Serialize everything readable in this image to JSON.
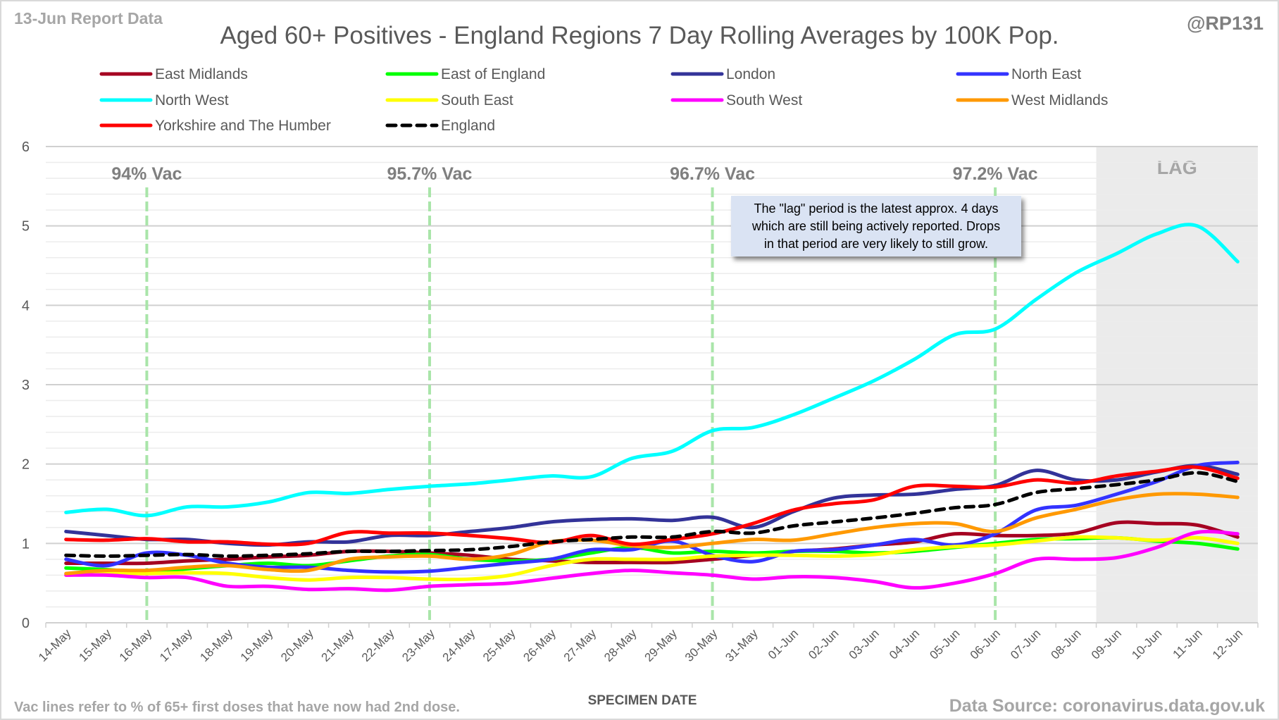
{
  "header": {
    "report_date": "13-Jun Report Data",
    "handle": "@RP131"
  },
  "footer": {
    "note": "Vac lines refer to % of 65+ first doses that have now had 2nd dose.",
    "source": "Data Source: coronavirus.data.gov.uk"
  },
  "annotation": {
    "lines": [
      "The \"lag\" period is the latest approx. 4 days",
      "which are still being actively reported.  Drops",
      "in that period are very likely to still grow."
    ]
  },
  "chart_data": {
    "type": "line",
    "title": "Aged 60+ Positives - England Regions 7 Day Rolling Averages by 100K Pop.",
    "xlabel": "SPECIMEN DATE",
    "ylabel": "",
    "ylim": [
      0,
      6
    ],
    "yticks": [
      0,
      1,
      2,
      3,
      4,
      5,
      6
    ],
    "minor_grid_step": 0.2,
    "grid": true,
    "legend_position": "top",
    "categories": [
      "14-May",
      "15-May",
      "16-May",
      "17-May",
      "18-May",
      "19-May",
      "20-May",
      "21-May",
      "22-May",
      "23-May",
      "24-May",
      "25-May",
      "26-May",
      "27-May",
      "28-May",
      "29-May",
      "30-May",
      "31-May",
      "01-Jun",
      "02-Jun",
      "03-Jun",
      "04-Jun",
      "05-Jun",
      "06-Jun",
      "07-Jun",
      "08-Jun",
      "09-Jun",
      "10-Jun",
      "11-Jun",
      "12-Jun"
    ],
    "series": [
      {
        "name": "East Midlands",
        "color": "#a50021",
        "dashed": false,
        "values": [
          0.75,
          0.75,
          0.75,
          0.78,
          0.8,
          0.83,
          0.85,
          0.9,
          0.9,
          0.88,
          0.85,
          0.8,
          0.78,
          0.76,
          0.76,
          0.76,
          0.8,
          0.85,
          0.9,
          0.93,
          0.98,
          1.02,
          1.12,
          1.1,
          1.1,
          1.13,
          1.26,
          1.25,
          1.23,
          1.08
        ]
      },
      {
        "name": "East of England",
        "color": "#00ff00",
        "dashed": false,
        "values": [
          0.69,
          0.67,
          0.64,
          0.68,
          0.72,
          0.75,
          0.72,
          0.78,
          0.84,
          0.86,
          0.8,
          0.78,
          0.8,
          0.88,
          0.95,
          0.88,
          0.9,
          0.88,
          0.9,
          0.9,
          0.88,
          0.9,
          0.95,
          1.0,
          1.05,
          1.06,
          1.07,
          1.03,
          1.0,
          0.93
        ]
      },
      {
        "name": "London",
        "color": "#333399",
        "dashed": false,
        "values": [
          1.15,
          1.1,
          1.05,
          1.05,
          1.0,
          0.98,
          1.02,
          1.02,
          1.1,
          1.1,
          1.15,
          1.2,
          1.27,
          1.3,
          1.31,
          1.29,
          1.33,
          1.2,
          1.4,
          1.57,
          1.61,
          1.62,
          1.68,
          1.73,
          1.92,
          1.8,
          1.8,
          1.9,
          1.98,
          1.87
        ]
      },
      {
        "name": "North East",
        "color": "#3333ff",
        "dashed": false,
        "values": [
          0.8,
          0.72,
          0.88,
          0.85,
          0.75,
          0.7,
          0.7,
          0.66,
          0.64,
          0.65,
          0.7,
          0.75,
          0.8,
          0.92,
          0.92,
          1.03,
          0.85,
          0.77,
          0.9,
          0.92,
          0.98,
          1.05,
          0.98,
          1.12,
          1.42,
          1.48,
          1.62,
          1.78,
          1.98,
          2.02
        ]
      },
      {
        "name": "North West",
        "color": "#00ffff",
        "dashed": false,
        "values": [
          1.39,
          1.43,
          1.35,
          1.46,
          1.46,
          1.52,
          1.64,
          1.63,
          1.68,
          1.72,
          1.75,
          1.8,
          1.85,
          1.84,
          2.07,
          2.16,
          2.42,
          2.46,
          2.62,
          2.83,
          3.05,
          3.32,
          3.63,
          3.7,
          4.07,
          4.41,
          4.65,
          4.9,
          5.0,
          4.55
        ]
      },
      {
        "name": "South East",
        "color": "#ffff00",
        "dashed": false,
        "values": [
          0.6,
          0.62,
          0.62,
          0.63,
          0.62,
          0.57,
          0.54,
          0.57,
          0.57,
          0.55,
          0.55,
          0.6,
          0.72,
          0.8,
          0.8,
          0.8,
          0.84,
          0.85,
          0.85,
          0.84,
          0.86,
          0.92,
          0.96,
          0.98,
          1.03,
          1.08,
          1.07,
          1.04,
          1.07,
          1.0
        ]
      },
      {
        "name": "South West",
        "color": "#ff00ff",
        "dashed": false,
        "values": [
          0.6,
          0.6,
          0.57,
          0.57,
          0.46,
          0.46,
          0.42,
          0.43,
          0.41,
          0.46,
          0.48,
          0.5,
          0.56,
          0.62,
          0.66,
          0.63,
          0.6,
          0.55,
          0.58,
          0.57,
          0.52,
          0.44,
          0.5,
          0.62,
          0.8,
          0.8,
          0.82,
          0.95,
          1.14,
          1.12
        ]
      },
      {
        "name": "West Midlands",
        "color": "#ff9900",
        "dashed": false,
        "values": [
          0.62,
          0.66,
          0.66,
          0.7,
          0.72,
          0.67,
          0.66,
          0.8,
          0.83,
          0.84,
          0.8,
          0.86,
          1.02,
          1.04,
          0.97,
          0.95,
          1.0,
          1.05,
          1.04,
          1.12,
          1.2,
          1.25,
          1.25,
          1.15,
          1.32,
          1.43,
          1.55,
          1.62,
          1.62,
          1.58
        ]
      },
      {
        "name": "Yorkshire and The Humber",
        "color": "#ff0000",
        "dashed": false,
        "values": [
          1.05,
          1.04,
          1.06,
          1.02,
          1.02,
          0.99,
          1.0,
          1.14,
          1.13,
          1.13,
          1.1,
          1.06,
          1.01,
          1.1,
          0.99,
          1.05,
          1.12,
          1.25,
          1.42,
          1.5,
          1.55,
          1.72,
          1.72,
          1.71,
          1.8,
          1.76,
          1.85,
          1.91,
          1.96,
          1.82
        ]
      },
      {
        "name": "England",
        "color": "#000000",
        "dashed": true,
        "values": [
          0.85,
          0.84,
          0.85,
          0.86,
          0.84,
          0.85,
          0.87,
          0.9,
          0.9,
          0.91,
          0.92,
          0.96,
          1.02,
          1.05,
          1.08,
          1.08,
          1.15,
          1.13,
          1.22,
          1.27,
          1.32,
          1.38,
          1.45,
          1.49,
          1.64,
          1.69,
          1.74,
          1.8,
          1.89,
          1.78
        ]
      }
    ],
    "vac_lines": [
      {
        "date": "16-May",
        "label": "94% Vac"
      },
      {
        "date": "23-May",
        "label": "95.7% Vac"
      },
      {
        "date": "30-May",
        "label": "96.7% Vac"
      },
      {
        "date": "06-Jun",
        "label": "97.2% Vac"
      }
    ],
    "vac_line_color": "#a9e5a9",
    "lag": {
      "start": "09-Jun",
      "end": "12-Jun",
      "label": "LAG",
      "days": 4,
      "color": "#ebebeb"
    }
  }
}
